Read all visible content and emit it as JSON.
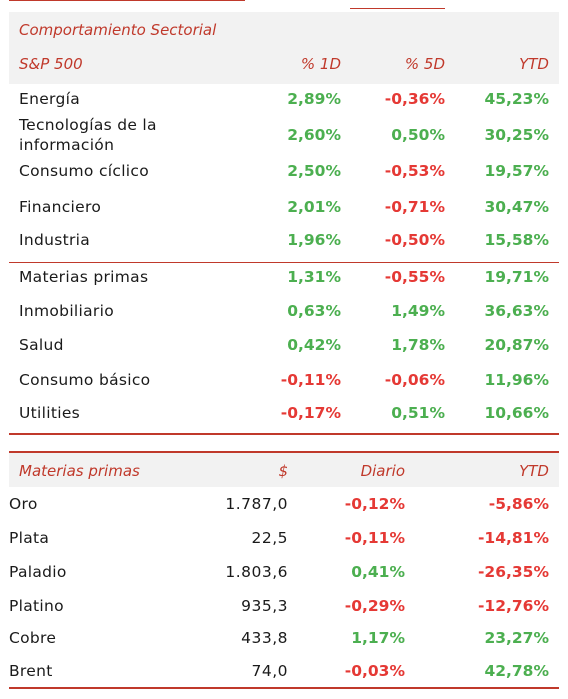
{
  "sector": {
    "title": "Comportamiento Sectorial",
    "headers": {
      "index": "S&P 500",
      "d1": "% 1D",
      "d5": "% 5D",
      "ytd": "YTD"
    },
    "rows": [
      {
        "name": "Energía",
        "d1": "2,89%",
        "d5": "-0,36%",
        "ytd": "45,23%"
      },
      {
        "name": "Tecnologías de la información",
        "name_line1": "Tecnologías de la",
        "name_line2": "información",
        "d1": "2,60%",
        "d5": "0,50%",
        "ytd": "30,25%"
      },
      {
        "name": "Consumo cíclico",
        "d1": "2,50%",
        "d5": "-0,53%",
        "ytd": "19,57%"
      },
      {
        "name": "Financiero",
        "d1": "2,01%",
        "d5": "-0,71%",
        "ytd": "30,47%"
      },
      {
        "name": "Industria",
        "d1": "1,96%",
        "d5": "-0,50%",
        "ytd": "15,58%"
      },
      {
        "name": "Materias primas",
        "d1": "1,31%",
        "d5": "-0,55%",
        "ytd": "19,71%"
      },
      {
        "name": "Inmobiliario",
        "d1": "0,63%",
        "d5": "1,49%",
        "ytd": "36,63%"
      },
      {
        "name": "Salud",
        "d1": "0,42%",
        "d5": "1,78%",
        "ytd": "20,87%"
      },
      {
        "name": "Consumo básico",
        "d1": "-0,11%",
        "d5": "-0,06%",
        "ytd": "11,96%"
      },
      {
        "name": "Utilities",
        "d1": "-0,17%",
        "d5": "0,51%",
        "ytd": "10,66%"
      }
    ]
  },
  "commodities": {
    "headers": {
      "name": "Materias primas",
      "price": "$",
      "daily": "Diario",
      "ytd": "YTD"
    },
    "rows": [
      {
        "name": "Oro",
        "price": "1.787,0",
        "daily": "-0,12%",
        "ytd": "-5,86%"
      },
      {
        "name": "Plata",
        "price": "22,5",
        "daily": "-0,11%",
        "ytd": "-14,81%"
      },
      {
        "name": "Paladio",
        "price": "1.803,6",
        "daily": "0,41%",
        "ytd": "-26,35%"
      },
      {
        "name": "Platino",
        "price": "935,3",
        "daily": "-0,29%",
        "ytd": "-12,76%"
      },
      {
        "name": "Cobre",
        "price": "433,8",
        "daily": "1,17%",
        "ytd": "23,27%"
      },
      {
        "name": "Brent",
        "price": "74,0",
        "daily": "-0,03%",
        "ytd": "42,78%"
      }
    ]
  },
  "colors": {
    "accent": "#c0392b",
    "positive": "#4caf50",
    "negative": "#e53935",
    "header_bg": "#f2f2f2"
  }
}
